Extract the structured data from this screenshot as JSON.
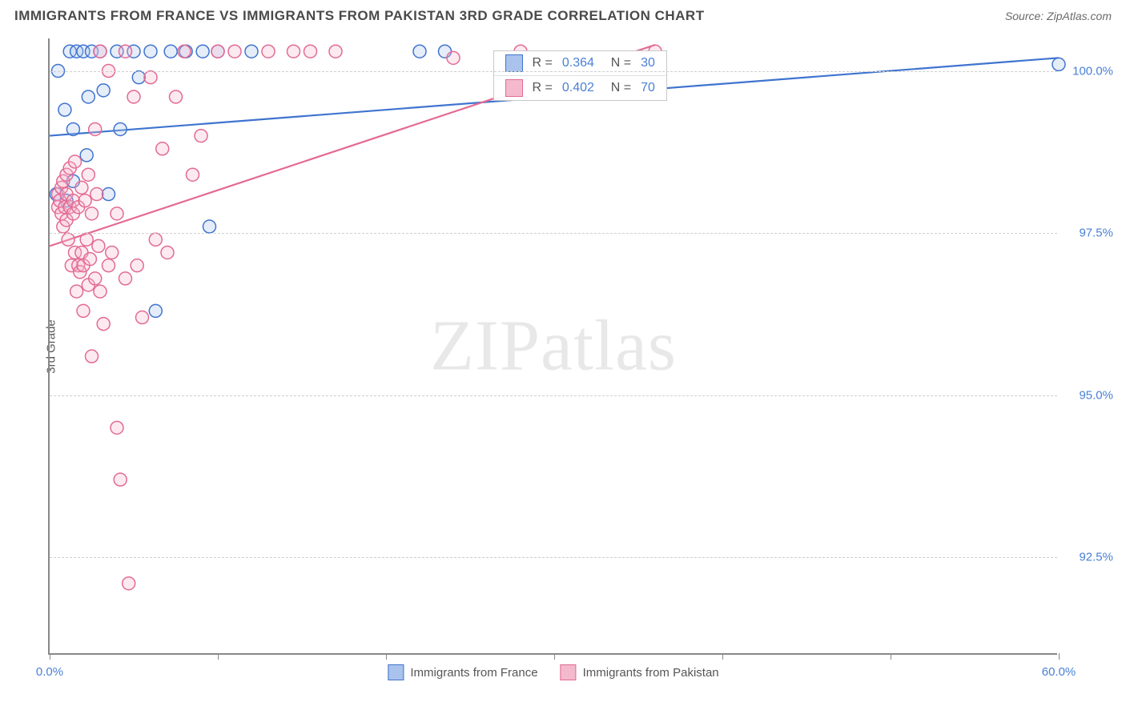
{
  "title": "IMMIGRANTS FROM FRANCE VS IMMIGRANTS FROM PAKISTAN 3RD GRADE CORRELATION CHART",
  "source_label": "Source: ",
  "source_name": "ZipAtlas.com",
  "y_axis_label": "3rd Grade",
  "watermark_a": "ZIP",
  "watermark_b": "atlas",
  "chart": {
    "type": "scatter",
    "xlim": [
      0,
      60
    ],
    "ylim": [
      91,
      100.5
    ],
    "x_ticks": [
      0,
      10,
      20,
      30,
      40,
      50,
      60
    ],
    "x_tick_labels_shown": {
      "0": "0.0%",
      "60": "60.0%"
    },
    "y_gridlines": [
      92.5,
      95.0,
      97.5,
      100.0
    ],
    "y_tick_labels": {
      "92.5": "92.5%",
      "95.0": "95.0%",
      "97.5": "97.5%",
      "100.0": "100.0%"
    },
    "background_color": "#ffffff",
    "grid_color": "#cfcfcf",
    "axis_color": "#888888",
    "label_color": "#4a80d6",
    "marker_radius": 8,
    "marker_stroke_width": 1.5,
    "marker_fill_opacity": 0.3,
    "line_width": 2.2,
    "series": [
      {
        "name": "Immigrants from France",
        "color_stroke": "#3f74cf",
        "color_fill": "#a9c3ec",
        "R": "0.364",
        "N": "30",
        "trend": {
          "x1": 0,
          "y1": 99.0,
          "x2": 60,
          "y2": 100.2
        },
        "points": [
          [
            0.4,
            98.1
          ],
          [
            0.5,
            100.0
          ],
          [
            0.9,
            99.4
          ],
          [
            1.0,
            98.0
          ],
          [
            1.2,
            100.3
          ],
          [
            1.4,
            99.1
          ],
          [
            1.6,
            100.3
          ],
          [
            1.4,
            98.3
          ],
          [
            2.0,
            100.3
          ],
          [
            2.2,
            98.7
          ],
          [
            2.3,
            99.6
          ],
          [
            2.5,
            100.3
          ],
          [
            3.0,
            100.3
          ],
          [
            3.2,
            99.7
          ],
          [
            3.5,
            98.1
          ],
          [
            4.0,
            100.3
          ],
          [
            4.2,
            99.1
          ],
          [
            5.0,
            100.3
          ],
          [
            5.3,
            99.9
          ],
          [
            6.0,
            100.3
          ],
          [
            6.3,
            96.3
          ],
          [
            7.2,
            100.3
          ],
          [
            8.1,
            100.3
          ],
          [
            9.1,
            100.3
          ],
          [
            9.5,
            97.6
          ],
          [
            10.0,
            100.3
          ],
          [
            12.0,
            100.3
          ],
          [
            22.0,
            100.3
          ],
          [
            23.5,
            100.3
          ],
          [
            60.0,
            100.1
          ]
        ]
      },
      {
        "name": "Immigrants from Pakistan",
        "color_stroke": "#e36a94",
        "color_fill": "#f4b9cd",
        "R": "0.402",
        "N": "70",
        "trend": {
          "x1": 0,
          "y1": 97.3,
          "x2": 36,
          "y2": 100.4
        },
        "points": [
          [
            0.5,
            97.9
          ],
          [
            0.5,
            98.1
          ],
          [
            0.6,
            98.0
          ],
          [
            0.7,
            97.8
          ],
          [
            0.7,
            98.2
          ],
          [
            0.8,
            97.6
          ],
          [
            0.8,
            98.3
          ],
          [
            0.9,
            97.9
          ],
          [
            1.0,
            97.7
          ],
          [
            1.0,
            98.1
          ],
          [
            1.0,
            98.4
          ],
          [
            1.1,
            97.4
          ],
          [
            1.2,
            97.9
          ],
          [
            1.2,
            98.5
          ],
          [
            1.3,
            97.0
          ],
          [
            1.4,
            97.8
          ],
          [
            1.4,
            98.0
          ],
          [
            1.5,
            97.2
          ],
          [
            1.5,
            98.6
          ],
          [
            1.6,
            96.6
          ],
          [
            1.7,
            97.0
          ],
          [
            1.7,
            97.9
          ],
          [
            1.8,
            96.9
          ],
          [
            1.9,
            97.2
          ],
          [
            1.9,
            98.2
          ],
          [
            2.0,
            96.3
          ],
          [
            2.0,
            97.0
          ],
          [
            2.1,
            98.0
          ],
          [
            2.2,
            97.4
          ],
          [
            2.3,
            96.7
          ],
          [
            2.3,
            98.4
          ],
          [
            2.4,
            97.1
          ],
          [
            2.5,
            95.6
          ],
          [
            2.5,
            97.8
          ],
          [
            2.7,
            96.8
          ],
          [
            2.7,
            99.1
          ],
          [
            2.8,
            98.1
          ],
          [
            2.9,
            97.3
          ],
          [
            3.0,
            96.6
          ],
          [
            3.0,
            100.3
          ],
          [
            3.2,
            96.1
          ],
          [
            3.5,
            97.0
          ],
          [
            3.5,
            100.0
          ],
          [
            3.7,
            97.2
          ],
          [
            4.0,
            94.5
          ],
          [
            4.0,
            97.8
          ],
          [
            4.2,
            93.7
          ],
          [
            4.5,
            96.8
          ],
          [
            4.5,
            100.3
          ],
          [
            4.7,
            92.1
          ],
          [
            5.0,
            99.6
          ],
          [
            5.2,
            97.0
          ],
          [
            5.5,
            96.2
          ],
          [
            6.0,
            99.9
          ],
          [
            6.3,
            97.4
          ],
          [
            6.7,
            98.8
          ],
          [
            7.0,
            97.2
          ],
          [
            7.5,
            99.6
          ],
          [
            8.0,
            100.3
          ],
          [
            8.5,
            98.4
          ],
          [
            9.0,
            99.0
          ],
          [
            10.0,
            100.3
          ],
          [
            11.0,
            100.3
          ],
          [
            13.0,
            100.3
          ],
          [
            14.5,
            100.3
          ],
          [
            15.5,
            100.3
          ],
          [
            17.0,
            100.3
          ],
          [
            24.0,
            100.2
          ],
          [
            28.0,
            100.3
          ],
          [
            36.0,
            100.3
          ]
        ]
      }
    ]
  },
  "legend_inset": {
    "left_pct": 44,
    "top_pct": 2
  }
}
